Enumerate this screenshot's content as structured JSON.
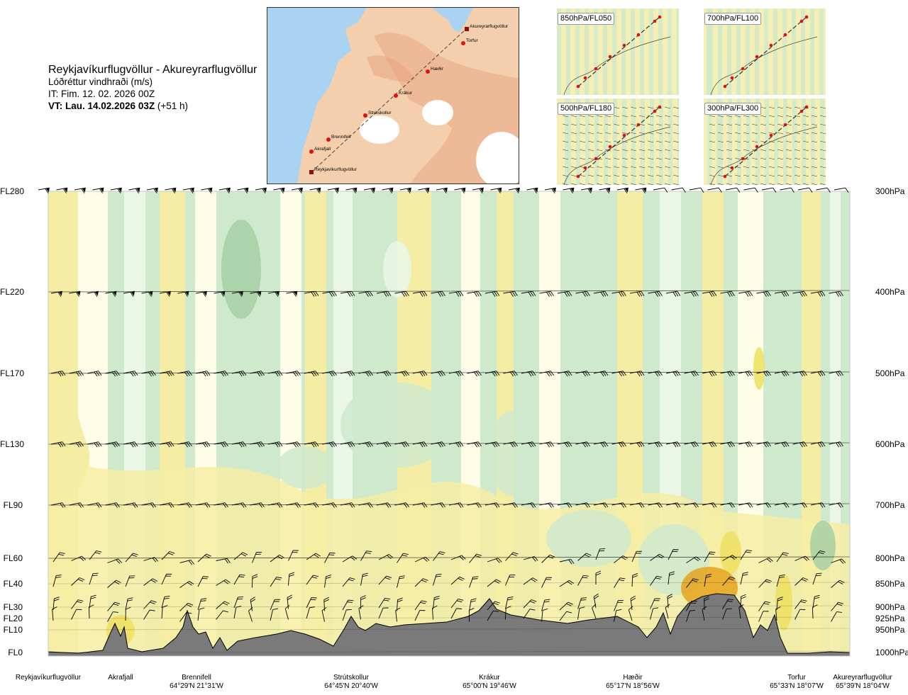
{
  "header": {
    "route": "Reykjavíkurflugvöllur - Akureyrarflugvöllur",
    "variable": "Lóðréttur vindhraði (m/s)",
    "issue_time": "IT: Fim. 12. 02. 2026 00Z",
    "valid_time_bold": "VT: Lau. 14.02.2026 03Z",
    "valid_time_lead": "(+51 h)"
  },
  "map": {
    "route_points": [
      "Reykjavíkurflugvöllur",
      "Akrafjall",
      "Brennifell",
      "Strútskollur",
      "Krákur",
      "Hæðir",
      "Torfur",
      "Akureyrarflugvöllur"
    ],
    "colors": {
      "land": "#f1c7a2",
      "sea": "#a9d3f1",
      "ice": "#ffffff",
      "route": "#444444",
      "point": "#e01010"
    }
  },
  "insets": [
    {
      "label": "850hPa/FL050"
    },
    {
      "label": "700hPa/FL100"
    },
    {
      "label": "500hPa/FL180"
    },
    {
      "label": "300hPa/FL300"
    }
  ],
  "chart_data": {
    "type": "heatmap",
    "title": "Lóðréttur vindhraði (m/s)",
    "colors": {
      "strong_down": "#a7cfa5",
      "down": "#cfe9cc",
      "weak_down": "#eaf6e6",
      "neutral": "#fefde7",
      "up": "#f6eda5",
      "strong_up": "#efdf5e",
      "very_strong_up": "#e5a31d",
      "terrain": "#7a7a7a"
    },
    "left_axis": [
      {
        "label": "FL280"
      },
      {
        "label": "FL220"
      },
      {
        "label": "FL170"
      },
      {
        "label": "FL130"
      },
      {
        "label": "FL90"
      },
      {
        "label": "FL60"
      },
      {
        "label": "FL40"
      },
      {
        "label": "FL30"
      },
      {
        "label": "FL20"
      },
      {
        "label": "FL10"
      },
      {
        "label": "FL0"
      }
    ],
    "right_axis": [
      {
        "label": "300hPa"
      },
      {
        "label": "400hPa"
      },
      {
        "label": "500hPa"
      },
      {
        "label": "600hPa"
      },
      {
        "label": "700hPa"
      },
      {
        "label": "800hPa"
      },
      {
        "label": "850hPa"
      },
      {
        "label": "900hPa"
      },
      {
        "label": "925hPa"
      },
      {
        "label": "950hPa"
      },
      {
        "label": "1000hPa"
      }
    ],
    "stations": [
      {
        "name": "Reykjavíkurflugvöllur",
        "coord": ""
      },
      {
        "name": "Akrafjall",
        "coord": ""
      },
      {
        "name": "Brennifell",
        "coord": "64°29'N 21°31'W"
      },
      {
        "name": "Strútskollur",
        "coord": "64°45'N 20°40'W"
      },
      {
        "name": "Krákur",
        "coord": "65°00'N 19°46'W"
      },
      {
        "name": "Hæðir",
        "coord": "65°17'N 18°56'W"
      },
      {
        "name": "Torfur",
        "coord": "65°33'N 18°07'W"
      },
      {
        "name": "Akureyrarflugvöllur",
        "coord": "65°39'N 18°04'W"
      }
    ]
  }
}
